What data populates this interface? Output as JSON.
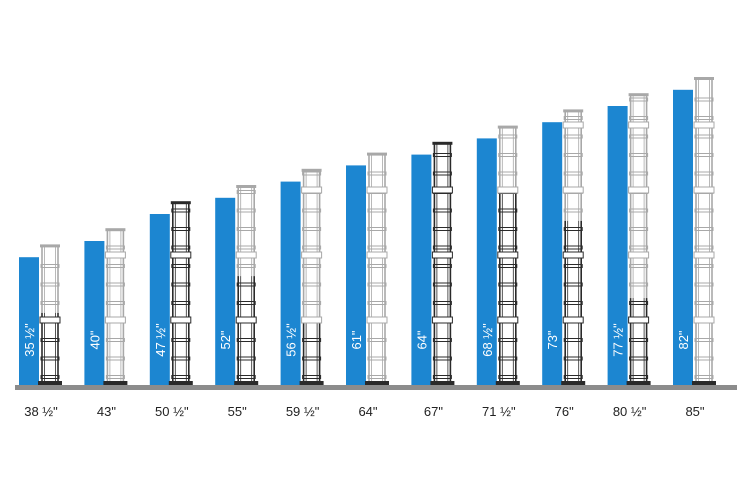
{
  "chart_data": {
    "type": "bar",
    "categories": [
      "38 ½\"",
      "43\"",
      "50 ½\"",
      "55\"",
      "59 ½\"",
      "64\"",
      "67\"",
      "71 ½\"",
      "76\"",
      "80 ½\"",
      "85\""
    ],
    "bar_labels": [
      "35 ½\"",
      "40\"",
      "47 ½\"",
      "52\"",
      "56 ½\"",
      "61\"",
      "64\"",
      "68 ½\"",
      "73\"",
      "77 ½\"",
      "82\""
    ],
    "values": [
      35.5,
      40,
      47.5,
      52,
      56.5,
      61,
      64,
      68.5,
      73,
      77.5,
      82
    ],
    "ladder_heights": [
      38.5,
      43,
      50.5,
      55,
      59.5,
      64,
      67,
      71.5,
      76,
      80.5,
      85
    ],
    "title": "",
    "xlabel": "",
    "ylabel": "",
    "ylim": [
      0,
      85
    ],
    "grid": false,
    "legend": "none",
    "colors": {
      "bar": "#1C86D1",
      "ladder": "#A8A8A8",
      "ladder_active": "#2A2A2A",
      "baseline": "#8C8C8C",
      "label_text": "#222222"
    }
  }
}
